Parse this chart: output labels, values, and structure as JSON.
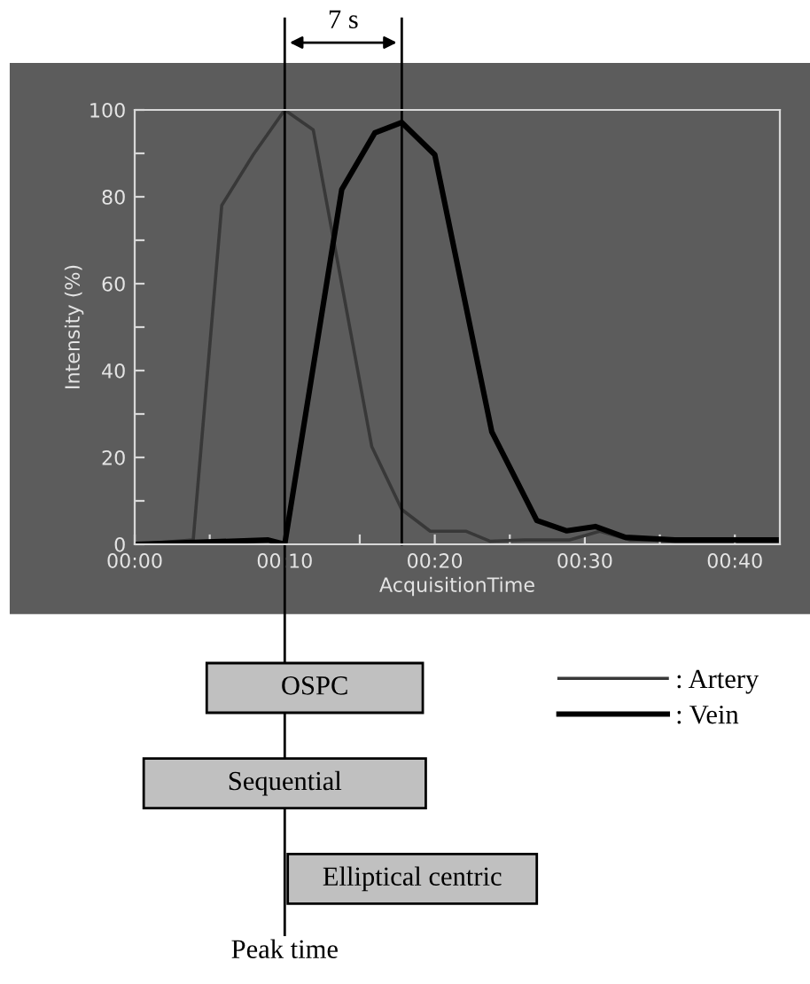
{
  "chart_data": [
    {
      "type": "line",
      "xlabel": "AcquisitionTime",
      "ylabel": "Intensity (%)",
      "series": [
        {
          "name": ": Artery",
          "color": "#383838",
          "x": [
            0,
            3.9,
            5.8,
            7.9,
            10,
            11.9,
            15.8,
            17.8,
            19.7,
            22.1,
            23.7,
            26,
            29,
            31,
            33,
            36,
            40,
            43
          ],
          "values": [
            0,
            1,
            78,
            89.7,
            100,
            95.4,
            22.5,
            8,
            3,
            3,
            0.7,
            1,
            1,
            3,
            1,
            1,
            1,
            1
          ]
        },
        {
          "name": ": Vein",
          "color": "#000000",
          "x": [
            0,
            8.9,
            10,
            13.8,
            16,
            17.8,
            20,
            23.8,
            26.8,
            28.8,
            30.7,
            32.7,
            36,
            40,
            43
          ],
          "values": [
            0,
            1,
            0,
            81.7,
            94.7,
            97.1,
            89.7,
            25.9,
            5.5,
            3.1,
            4.1,
            1.6,
            1,
            1,
            1
          ]
        }
      ],
      "xlim": [
        0,
        43
      ],
      "xticks": [
        {
          "value": 0,
          "label": "00:00"
        },
        {
          "value": 5,
          "label": null
        },
        {
          "value": 10,
          "label": "00:10"
        },
        {
          "value": 15,
          "label": null
        },
        {
          "value": 20,
          "label": "00:20"
        },
        {
          "value": 25,
          "label": null
        },
        {
          "value": 30,
          "label": "00:30"
        },
        {
          "value": 35,
          "label": null
        },
        {
          "value": 40,
          "label": "00:40"
        }
      ],
      "ylim": [
        0,
        100
      ],
      "yticks": [
        0,
        {
          "value": 10,
          "label": null
        },
        20,
        {
          "value": 30,
          "label": null
        },
        40,
        {
          "value": 50,
          "label": null
        },
        60,
        {
          "value": 70,
          "label": null
        },
        80,
        {
          "value": 90,
          "label": null
        },
        100
      ],
      "ref_lines": [
        {
          "axis": "x",
          "value": 10,
          "color": "#000000"
        },
        {
          "axis": "x",
          "value": 17.8,
          "color": "#000000"
        }
      ],
      "annotations": [
        "7 s"
      ],
      "grid": false,
      "legend": "bottom right",
      "marker": "none",
      "line_style": "solid"
    },
    {
      "type": "bar",
      "orientation": "horizontal",
      "categories": [
        "OSPC",
        "Sequential",
        "Elliptical centric"
      ],
      "base": [
        4.8,
        0.6,
        10.2
      ],
      "values": [
        14.4,
        18.8,
        16.6
      ],
      "color": "#c0c0c0",
      "xlim": [
        0,
        43
      ],
      "tick_labels": false,
      "ref_lines": [
        {
          "axis": "x",
          "value": 10,
          "label": "Peak time",
          "color": "#000000"
        }
      ]
    }
  ]
}
